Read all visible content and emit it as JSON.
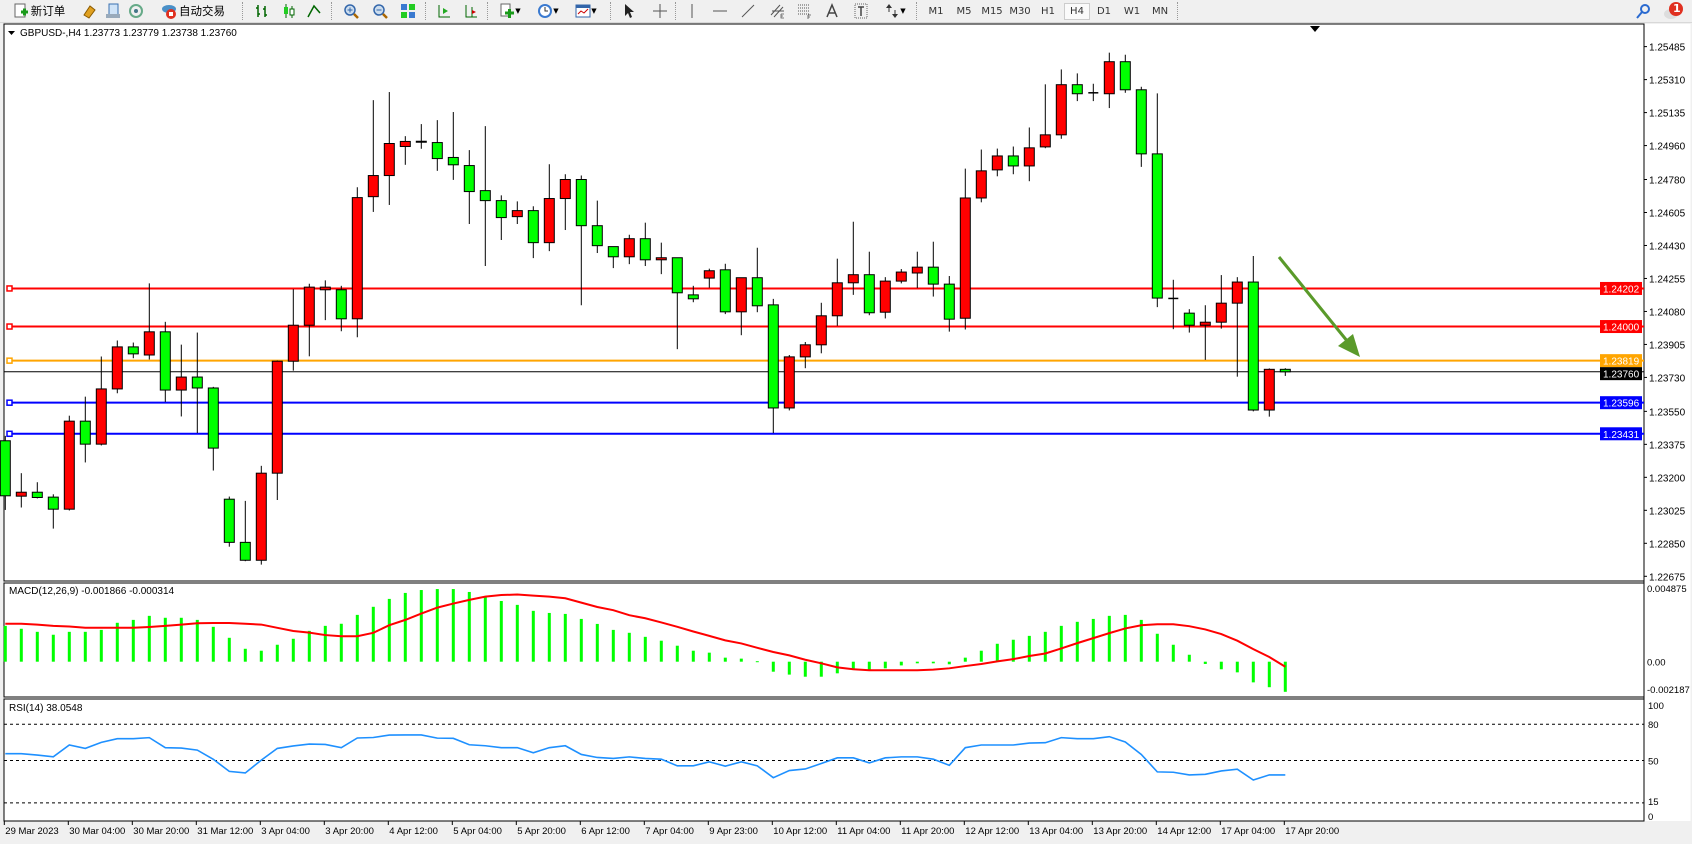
{
  "toolbar": {
    "new_order_label": "新订单",
    "auto_trading_label": "自动交易",
    "periods": [
      "M1",
      "M5",
      "M15",
      "M30",
      "H1",
      "H4",
      "D1",
      "W1",
      "MN"
    ],
    "selected_period": "H4",
    "notification_count": "1",
    "icons": [
      "new-order-icon",
      "market-watch-icon",
      "navigator-icon",
      "signals-icon",
      "auto-trading-icon",
      "bar-chart-icon",
      "candlestick-icon",
      "line-chart-icon",
      "zoom-in-icon",
      "zoom-out-icon",
      "tile-windows-icon",
      "chart-shift-icon",
      "auto-scroll-icon",
      "indicators-icon",
      "periods-icon",
      "templates-icon",
      "cursor-icon",
      "crosshair-icon",
      "vertical-line-icon",
      "horizontal-line-icon",
      "trendline-icon",
      "equidistant-channel-icon",
      "fibonacci-icon",
      "text-icon",
      "text-label-icon",
      "arrows-icon",
      "search-icon",
      "notification-icon"
    ]
  },
  "main": {
    "symbol_label": "GBPUSD-,H4  1.23773 1.23779 1.23738 1.23760",
    "macd_label": "MACD(12,26,9) -0.001866 -0.000314",
    "rsi_label": "RSI(14) 38.0548",
    "price_ticks": [
      "1.25485",
      "1.25310",
      "1.25135",
      "1.24960",
      "1.24780",
      "1.24605",
      "1.24430",
      "1.24255",
      "1.24080",
      "1.23905",
      "1.23730",
      "1.23550",
      "1.23375",
      "1.23200",
      "1.23025",
      "1.22850",
      "1.22675"
    ],
    "macd_ticks": [
      "0.004875",
      "0.00",
      "-0.002187"
    ],
    "rsi_ticks": [
      "100",
      "80",
      "50",
      "15",
      "0"
    ],
    "time_labels": [
      "29 Mar 2023",
      "30 Mar 04:00",
      "30 Mar 20:00",
      "31 Mar 12:00",
      "3 Apr 04:00",
      "3 Apr 20:00",
      "4 Apr 12:00",
      "5 Apr 04:00",
      "5 Apr 20:00",
      "6 Apr 12:00",
      "7 Apr 04:00",
      "9 Apr 23:00",
      "10 Apr 12:00",
      "11 Apr 04:00",
      "11 Apr 20:00",
      "12 Apr 12:00",
      "13 Apr 04:00",
      "13 Apr 20:00",
      "14 Apr 12:00",
      "17 Apr 04:00",
      "17 Apr 20:00"
    ],
    "levels": [
      {
        "price": "1.24202",
        "color": "#ff0000"
      },
      {
        "price": "1.24000",
        "color": "#ff0000"
      },
      {
        "price": "1.23819",
        "color": "#ffa500"
      },
      {
        "price": "1.23596",
        "color": "#0000ff"
      },
      {
        "price": "1.23431",
        "color": "#0000ff"
      }
    ],
    "current_price": "1.23760",
    "arrow_color": "#5a9a2a"
  },
  "chart_data": {
    "type": "candlestick",
    "symbol": "GBPUSD-",
    "timeframe": "H4",
    "price_range": [
      1.2265,
      1.25605
    ],
    "colors": {
      "bull": "#ff0000",
      "bear": "#00ff00",
      "macd_hist": "#00ff00",
      "macd_signal": "#ff0000",
      "rsi": "#1e90ff"
    },
    "ohlc": [
      [
        1.23394,
        1.2342,
        1.23027,
        1.23102
      ],
      [
        1.231,
        1.23222,
        1.2304,
        1.23121
      ],
      [
        1.23121,
        1.23174,
        1.23088,
        1.23093
      ],
      [
        1.23095,
        1.2311,
        1.22928,
        1.23031
      ],
      [
        1.23031,
        1.23527,
        1.23024,
        1.23498
      ],
      [
        1.23498,
        1.23628,
        1.23279,
        1.23376
      ],
      [
        1.23376,
        1.23841,
        1.23369,
        1.23669
      ],
      [
        1.23669,
        1.23926,
        1.23646,
        1.23892
      ],
      [
        1.23892,
        1.23915,
        1.23832,
        1.23855
      ],
      [
        1.23849,
        1.24229,
        1.23825,
        1.23972
      ],
      [
        1.23972,
        1.24025,
        1.236,
        1.23663
      ],
      [
        1.23663,
        1.23904,
        1.23523,
        1.23732
      ],
      [
        1.23732,
        1.23968,
        1.23435,
        1.23674
      ],
      [
        1.23674,
        1.2368,
        1.23236,
        1.23355
      ],
      [
        1.23084,
        1.23098,
        1.22832,
        1.22855
      ],
      [
        1.22855,
        1.23075,
        1.22755,
        1.2276
      ],
      [
        1.2276,
        1.23261,
        1.22737,
        1.23222
      ],
      [
        1.23222,
        1.2382,
        1.2308,
        1.23816
      ],
      [
        1.23816,
        1.24198,
        1.23766,
        1.24007
      ],
      [
        1.24007,
        1.24227,
        1.23842,
        1.24209
      ],
      [
        1.24195,
        1.24245,
        1.24034,
        1.24209
      ],
      [
        1.24195,
        1.24216,
        1.23975,
        1.24041
      ],
      [
        1.24041,
        1.24739,
        1.23943,
        1.24684
      ],
      [
        1.24689,
        1.25201,
        1.24608,
        1.24801
      ],
      [
        1.24801,
        1.25244,
        1.24645,
        1.24971
      ],
      [
        1.24955,
        1.2501,
        1.24858,
        1.24982
      ],
      [
        1.24983,
        1.25074,
        1.24943,
        1.2498
      ],
      [
        1.24976,
        1.25095,
        1.24826,
        1.24891
      ],
      [
        1.24897,
        1.25138,
        1.24778,
        1.24858
      ],
      [
        1.24854,
        1.24936,
        1.24544,
        1.24716
      ],
      [
        1.24721,
        1.25063,
        1.24321,
        1.24668
      ],
      [
        1.24668,
        1.24696,
        1.24459,
        1.24578
      ],
      [
        1.24583,
        1.24664,
        1.24544,
        1.24615
      ],
      [
        1.24615,
        1.24638,
        1.24363,
        1.24445
      ],
      [
        1.24445,
        1.24861,
        1.244,
        1.24679
      ],
      [
        1.24679,
        1.24808,
        1.24512,
        1.2478
      ],
      [
        1.2478,
        1.24801,
        1.24113,
        1.24535
      ],
      [
        1.24535,
        1.24668,
        1.2439,
        1.24429
      ],
      [
        1.24424,
        1.24424,
        1.2431,
        1.2437
      ],
      [
        1.2437,
        1.24487,
        1.24331,
        1.24466
      ],
      [
        1.24466,
        1.24551,
        1.24321,
        1.24354
      ],
      [
        1.24354,
        1.24445,
        1.24278,
        1.24365
      ],
      [
        1.24365,
        1.24365,
        1.2388,
        1.24179
      ],
      [
        1.24168,
        1.24216,
        1.24129,
        1.24147
      ],
      [
        1.24257,
        1.24307,
        1.24206,
        1.24296
      ],
      [
        1.24301,
        1.24333,
        1.24066,
        1.24078
      ],
      [
        1.24078,
        1.24259,
        1.23954,
        1.24259
      ],
      [
        1.24259,
        1.24418,
        1.24076,
        1.2411
      ],
      [
        1.24115,
        1.24147,
        1.23435,
        1.23568
      ],
      [
        1.23568,
        1.23849,
        1.23555,
        1.23839
      ],
      [
        1.23839,
        1.23918,
        1.23779,
        1.23903
      ],
      [
        1.23903,
        1.24126,
        1.23858,
        1.24057
      ],
      [
        1.24057,
        1.2436,
        1.24004,
        1.24232
      ],
      [
        1.24232,
        1.24556,
        1.24168,
        1.24275
      ],
      [
        1.24275,
        1.24397,
        1.2406,
        1.24073
      ],
      [
        1.24076,
        1.24262,
        1.24043,
        1.24241
      ],
      [
        1.24241,
        1.24305,
        1.24229,
        1.24289
      ],
      [
        1.24284,
        1.24397,
        1.24204,
        1.24315
      ],
      [
        1.24315,
        1.2445,
        1.24159,
        1.24225
      ],
      [
        1.24225,
        1.24268,
        1.23973,
        1.24039
      ],
      [
        1.24044,
        1.24838,
        1.23984,
        1.24682
      ],
      [
        1.24682,
        1.24939,
        1.24659,
        1.24826
      ],
      [
        1.24831,
        1.24944,
        1.24797,
        1.24905
      ],
      [
        1.24905,
        1.24955,
        1.24808,
        1.24852
      ],
      [
        1.24852,
        1.25056,
        1.24771,
        1.24948
      ],
      [
        1.24953,
        1.25285,
        1.24946,
        1.25017
      ],
      [
        1.25017,
        1.25364,
        1.24996,
        1.25283
      ],
      [
        1.25283,
        1.25343,
        1.25196,
        1.25235
      ],
      [
        1.2524,
        1.25288,
        1.25196,
        1.2524
      ],
      [
        1.25235,
        1.25453,
        1.25159,
        1.25405
      ],
      [
        1.25405,
        1.25442,
        1.2524,
        1.25256
      ],
      [
        1.25256,
        1.25272,
        1.24847,
        1.24916
      ],
      [
        1.24916,
        1.25237,
        1.24103,
        1.24151
      ],
      [
        1.24149,
        1.24248,
        1.23986,
        1.24149
      ],
      [
        1.24071,
        1.24092,
        1.23968,
        1.24007
      ],
      [
        1.24007,
        1.24113,
        1.23823,
        1.24023
      ],
      [
        1.24023,
        1.24273,
        1.23989,
        1.24124
      ],
      [
        1.24124,
        1.24262,
        1.23734,
        1.24236
      ],
      [
        1.24236,
        1.24374,
        1.2355,
        1.23557
      ],
      [
        1.23557,
        1.23778,
        1.23522,
        1.23773
      ],
      [
        1.23773,
        1.23779,
        1.23738,
        1.2376
      ]
    ],
    "macd_range": [
      -0.002187,
      0.004875
    ],
    "macd_hist": [
      0.00222,
      0.00204,
      0.00185,
      0.00167,
      0.00185,
      0.00185,
      0.00197,
      0.00241,
      0.00259,
      0.00284,
      0.00272,
      0.00272,
      0.00259,
      0.00216,
      0.00148,
      0.0008,
      0.00068,
      0.00105,
      0.00142,
      0.00191,
      0.00222,
      0.00235,
      0.0029,
      0.0034,
      0.00389,
      0.00426,
      0.00444,
      0.0045,
      0.0045,
      0.00432,
      0.00407,
      0.00376,
      0.00352,
      0.00315,
      0.00302,
      0.00296,
      0.00265,
      0.00234,
      0.00197,
      0.00179,
      0.00154,
      0.0013,
      0.00099,
      0.00068,
      0.00056,
      0.00025,
      0.00019,
      3e-05,
      -0.00062,
      -0.0008,
      -0.00093,
      -0.00093,
      -0.00072,
      -0.00051,
      -0.00051,
      -0.00041,
      -0.00023,
      -0.0001,
      -0.0001,
      -0.00016,
      0.00025,
      0.00068,
      0.00111,
      0.00136,
      0.0016,
      0.00185,
      0.00222,
      0.00247,
      0.00265,
      0.00284,
      0.0029,
      0.00259,
      0.00173,
      0.00105,
      0.00043,
      -0.00014,
      -0.00047,
      -0.00066,
      -0.00128,
      -0.00158,
      -0.001866
    ],
    "macd_signal": [
      0.00235,
      0.00235,
      0.0023,
      0.00222,
      0.00218,
      0.0021,
      0.0021,
      0.0021,
      0.0021,
      0.00215,
      0.00222,
      0.0023,
      0.00238,
      0.0024,
      0.0024,
      0.00235,
      0.0023,
      0.0021,
      0.0019,
      0.0018,
      0.00165,
      0.00158,
      0.00158,
      0.00179,
      0.00226,
      0.00259,
      0.00298,
      0.00335,
      0.0036,
      0.00383,
      0.00403,
      0.00413,
      0.00416,
      0.00409,
      0.00403,
      0.00393,
      0.00366,
      0.00339,
      0.00319,
      0.00288,
      0.00269,
      0.00243,
      0.00216,
      0.00187,
      0.0016,
      0.00132,
      0.00113,
      0.00086,
      0.0006,
      0.00039,
      0.00012,
      -0.0001,
      -0.00035,
      -0.00047,
      -0.00053,
      -0.00053,
      -0.00053,
      -0.00053,
      -0.00049,
      -0.00041,
      -0.00027,
      -0.00014,
      2e-05,
      0.00016,
      0.00035,
      0.00051,
      0.00082,
      0.00115,
      0.00146,
      0.00177,
      0.00206,
      0.00226,
      0.00232,
      0.00232,
      0.0022,
      0.002,
      0.00171,
      0.0013,
      0.00078,
      0.00029,
      -0.000314
    ],
    "rsi_range": [
      0,
      100
    ],
    "rsi_levels": [
      80,
      50,
      15
    ],
    "rsi": [
      55.6,
      55.6,
      54.5,
      53.1,
      62.8,
      60,
      65,
      68,
      68,
      68.9,
      60.6,
      60.3,
      58.6,
      51,
      41,
      39.7,
      50.3,
      60,
      62,
      63.6,
      63.3,
      60.6,
      68.6,
      69,
      71,
      71.1,
      71.1,
      68.5,
      68.3,
      63,
      62.2,
      60.6,
      60.6,
      56.4,
      60.6,
      62.2,
      55,
      52.5,
      51.7,
      53,
      51.7,
      51.1,
      45.6,
      45.6,
      48.9,
      45.3,
      48.9,
      45.6,
      35.8,
      41.7,
      43,
      47.5,
      52.2,
      52.2,
      48,
      52.2,
      53,
      53,
      51.1,
      46,
      60.6,
      62.8,
      62.8,
      62.8,
      64.4,
      64.7,
      68.9,
      68,
      68,
      69.7,
      65.3,
      55,
      40.6,
      40.3,
      38.1,
      38.6,
      41.4,
      42.8,
      33.9,
      38.1,
      38.0548
    ]
  }
}
